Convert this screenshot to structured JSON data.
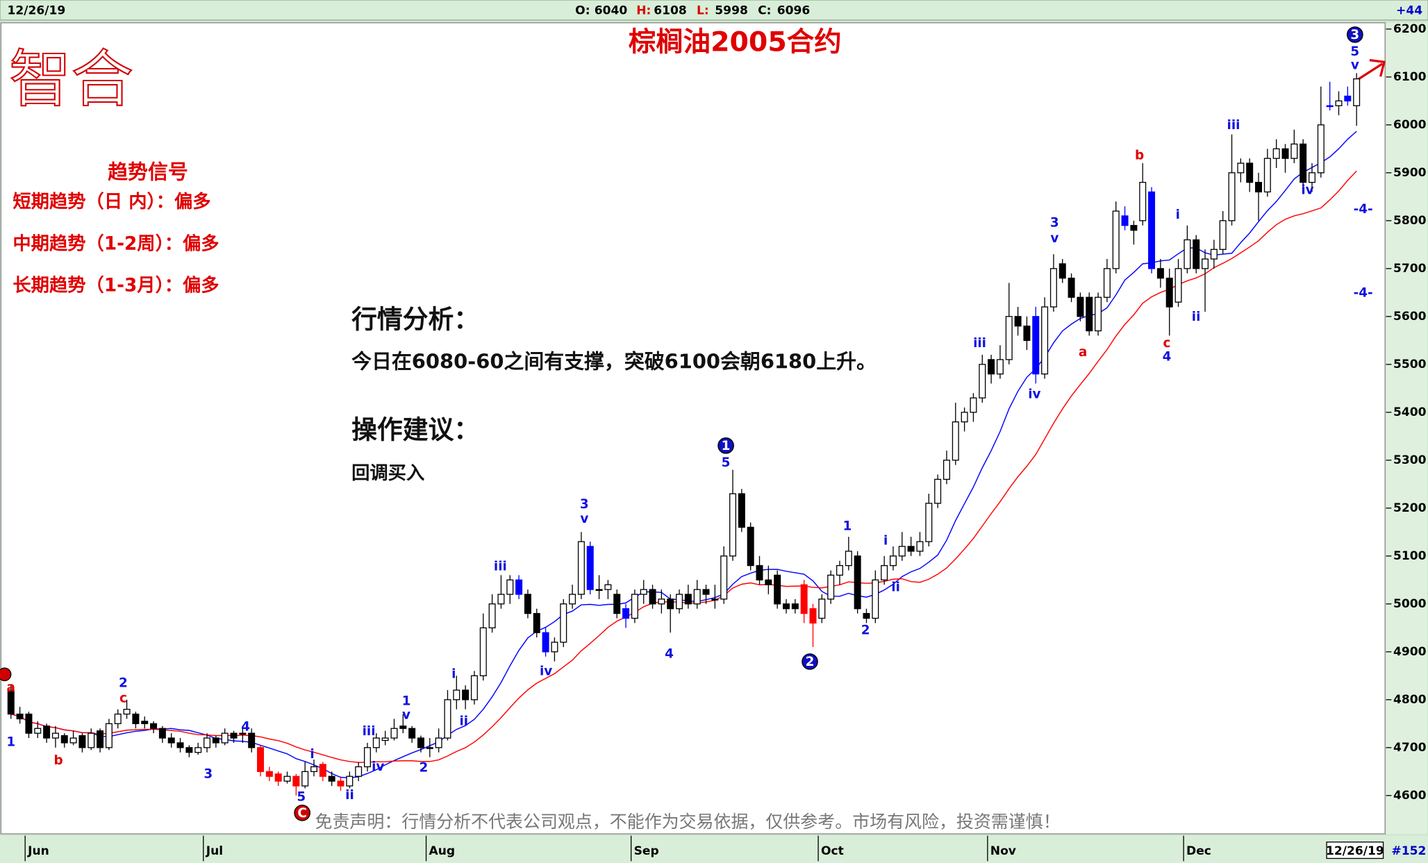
{
  "header": {
    "date": "12/26/19",
    "open_label": "O:",
    "open": 6040,
    "high_label": "H:",
    "high": 6108,
    "low_label": "L:",
    "low": 5998,
    "close_label": "C:",
    "close": 6096,
    "change": "+44"
  },
  "logo": "智合",
  "signals": {
    "title": "趋势信号",
    "lines": [
      "短期趋势（日 内）：偏多",
      "中期趋势（1-2周）：偏多",
      "长期趋势（1-3月）：偏多"
    ]
  },
  "analysis": {
    "heading": "行情分析：",
    "text": "今日在6080-60之间有支撑，突破6100会朝6180上升。",
    "advice_heading": "操作建议：",
    "advice": "回调买入"
  },
  "disclaimer": "免责声明：行情分析不代表公司观点，不能作为交易依据，仅供参考。市场有风险，投资需谨慎！",
  "footer": {
    "date": "12/26/19",
    "count": "#152"
  },
  "chart_data": {
    "type": "candlestick",
    "title": "棕榈油2005合约",
    "ylim": [
      4520,
      6215
    ],
    "yticks": [
      4600,
      4700,
      4800,
      4900,
      5000,
      5100,
      5200,
      5300,
      5400,
      5500,
      5600,
      5700,
      5800,
      5900,
      6000,
      6100,
      6200
    ],
    "up_color": "#ffffff",
    "down_color": "#000000",
    "red_color": "#ff0000",
    "blue_color": "#0000ff",
    "red_candles": [
      28,
      29,
      30,
      32,
      35,
      37,
      89,
      90
    ],
    "blue_candles": [
      57,
      60,
      65,
      69,
      115,
      125,
      128,
      148,
      150
    ],
    "moving_averages": [
      {
        "period": 10,
        "color": "#0000ff"
      },
      {
        "period": 20,
        "color": "#ff0000"
      }
    ],
    "categories": [
      null,
      null,
      "Jun",
      null,
      null,
      null,
      null,
      null,
      null,
      null,
      null,
      null,
      null,
      null,
      null,
      null,
      null,
      null,
      null,
      null,
      null,
      null,
      "Jul",
      null,
      null,
      null,
      null,
      null,
      null,
      null,
      null,
      null,
      null,
      null,
      null,
      null,
      null,
      null,
      null,
      null,
      null,
      null,
      null,
      null,
      null,
      null,
      null,
      "Aug",
      null,
      null,
      null,
      null,
      null,
      null,
      null,
      null,
      null,
      null,
      null,
      null,
      null,
      null,
      null,
      null,
      null,
      null,
      null,
      null,
      null,
      null,
      "Sep",
      null,
      null,
      null,
      null,
      null,
      null,
      null,
      null,
      null,
      null,
      null,
      null,
      null,
      null,
      null,
      null,
      null,
      null,
      null,
      null,
      "Oct",
      null,
      null,
      null,
      null,
      null,
      null,
      null,
      null,
      null,
      null,
      null,
      null,
      null,
      null,
      null,
      null,
      null,
      null,
      "Nov",
      null,
      null,
      null,
      null,
      null,
      null,
      null,
      null,
      null,
      null,
      null,
      null,
      null,
      null,
      null,
      null,
      null,
      null,
      null,
      null,
      null,
      "Dec",
      null,
      null,
      null,
      null,
      null,
      null,
      null,
      null,
      null,
      null,
      null,
      null,
      null,
      null,
      null,
      null,
      null,
      null,
      null
    ],
    "candles": [
      [
        4820,
        4830,
        4760,
        4770
      ],
      [
        4770,
        4785,
        4750,
        4760
      ],
      [
        4770,
        4775,
        4720,
        4730
      ],
      [
        4730,
        4755,
        4720,
        4740
      ],
      [
        4745,
        4750,
        4710,
        4720
      ],
      [
        4720,
        4745,
        4700,
        4730
      ],
      [
        4725,
        4730,
        4700,
        4710
      ],
      [
        4710,
        4735,
        4705,
        4720
      ],
      [
        4725,
        4730,
        4690,
        4700
      ],
      [
        4700,
        4740,
        4695,
        4730
      ],
      [
        4735,
        4740,
        4690,
        4700
      ],
      [
        4700,
        4760,
        4695,
        4750
      ],
      [
        4750,
        4780,
        4740,
        4770
      ],
      [
        4770,
        4800,
        4760,
        4780
      ],
      [
        4770,
        4775,
        4740,
        4750
      ],
      [
        4755,
        4765,
        4740,
        4750
      ],
      [
        4750,
        4755,
        4730,
        4740
      ],
      [
        4740,
        4745,
        4710,
        4720
      ],
      [
        4720,
        4730,
        4700,
        4710
      ],
      [
        4710,
        4720,
        4690,
        4700
      ],
      [
        4700,
        4705,
        4680,
        4690
      ],
      [
        4690,
        4710,
        4685,
        4700
      ],
      [
        4700,
        4730,
        4690,
        4720
      ],
      [
        4720,
        4725,
        4700,
        4710
      ],
      [
        4710,
        4740,
        4705,
        4730
      ],
      [
        4730,
        4735,
        4710,
        4720
      ],
      [
        4730,
        4745,
        4710,
        4730
      ],
      [
        4730,
        4740,
        4690,
        4700
      ],
      [
        4700,
        4705,
        4640,
        4650
      ],
      [
        4650,
        4660,
        4630,
        4640
      ],
      [
        4645,
        4650,
        4620,
        4630
      ],
      [
        4630,
        4650,
        4625,
        4640
      ],
      [
        4640,
        4645,
        4600,
        4620
      ],
      [
        4620,
        4670,
        4615,
        4650
      ],
      [
        4650,
        4675,
        4640,
        4660
      ],
      [
        4665,
        4670,
        4630,
        4640
      ],
      [
        4640,
        4650,
        4620,
        4630
      ],
      [
        4630,
        4640,
        4610,
        4620
      ],
      [
        4620,
        4650,
        4615,
        4640
      ],
      [
        4640,
        4670,
        4630,
        4660
      ],
      [
        4660,
        4710,
        4650,
        4700
      ],
      [
        4700,
        4730,
        4690,
        4720
      ],
      [
        4715,
        4735,
        4705,
        4720
      ],
      [
        4720,
        4760,
        4715,
        4740
      ],
      [
        4745,
        4770,
        4730,
        4740
      ],
      [
        4740,
        4745,
        4710,
        4720
      ],
      [
        4720,
        4725,
        4690,
        4700
      ],
      [
        4700,
        4720,
        4680,
        4700
      ],
      [
        4700,
        4740,
        4690,
        4720
      ],
      [
        4720,
        4820,
        4715,
        4800
      ],
      [
        4800,
        4850,
        4780,
        4820
      ],
      [
        4820,
        4830,
        4780,
        4800
      ],
      [
        4800,
        4860,
        4790,
        4850
      ],
      [
        4850,
        4980,
        4840,
        4950
      ],
      [
        4950,
        5020,
        4940,
        5000
      ],
      [
        5000,
        5060,
        4990,
        5020
      ],
      [
        5020,
        5060,
        5000,
        5050
      ],
      [
        5050,
        5060,
        5010,
        5020
      ],
      [
        5020,
        5030,
        4970,
        4980
      ],
      [
        4980,
        4990,
        4930,
        4940
      ],
      [
        4940,
        4950,
        4890,
        4900
      ],
      [
        4900,
        4930,
        4880,
        4920
      ],
      [
        4920,
        5010,
        4910,
        5000
      ],
      [
        5000,
        5040,
        4990,
        5020
      ],
      [
        5020,
        5150,
        5010,
        5130
      ],
      [
        5120,
        5130,
        5020,
        5030
      ],
      [
        5030,
        5060,
        5010,
        5030
      ],
      [
        5030,
        5050,
        5010,
        5040
      ],
      [
        5020,
        5030,
        4970,
        4980
      ],
      [
        4990,
        5000,
        4950,
        4970
      ],
      [
        4970,
        5030,
        4960,
        5020
      ],
      [
        5020,
        5050,
        5000,
        5030
      ],
      [
        5030,
        5040,
        4990,
        5000
      ],
      [
        5000,
        5030,
        4980,
        5010
      ],
      [
        5010,
        5020,
        4940,
        4990
      ],
      [
        4990,
        5030,
        4980,
        5020
      ],
      [
        5020,
        5040,
        4990,
        5000
      ],
      [
        5000,
        5050,
        4990,
        5030
      ],
      [
        5030,
        5040,
        5000,
        5020
      ],
      [
        5010,
        5040,
        4990,
        5010
      ],
      [
        5010,
        5120,
        5000,
        5100
      ],
      [
        5100,
        5280,
        5090,
        5230
      ],
      [
        5230,
        5240,
        5150,
        5160
      ],
      [
        5160,
        5170,
        5070,
        5080
      ],
      [
        5080,
        5100,
        5040,
        5050
      ],
      [
        5050,
        5080,
        5020,
        5040
      ],
      [
        5060,
        5070,
        4990,
        5000
      ],
      [
        5000,
        5010,
        4980,
        4990
      ],
      [
        5000,
        5010,
        4980,
        4990
      ],
      [
        5040,
        5050,
        4960,
        4980
      ],
      [
        4990,
        5000,
        4910,
        4960
      ],
      [
        4970,
        5020,
        4960,
        5010
      ],
      [
        5010,
        5070,
        5000,
        5060
      ],
      [
        5060,
        5090,
        5040,
        5080
      ],
      [
        5080,
        5140,
        5070,
        5110
      ],
      [
        5100,
        5110,
        4980,
        4990
      ],
      [
        4980,
        4990,
        4960,
        4970
      ],
      [
        4970,
        5070,
        4960,
        5050
      ],
      [
        5050,
        5100,
        5040,
        5080
      ],
      [
        5080,
        5120,
        5070,
        5100
      ],
      [
        5100,
        5150,
        5090,
        5120
      ],
      [
        5120,
        5140,
        5100,
        5110
      ],
      [
        5110,
        5150,
        5100,
        5130
      ],
      [
        5130,
        5230,
        5120,
        5210
      ],
      [
        5210,
        5270,
        5200,
        5260
      ],
      [
        5260,
        5320,
        5250,
        5300
      ],
      [
        5300,
        5420,
        5290,
        5380
      ],
      [
        5380,
        5410,
        5360,
        5400
      ],
      [
        5400,
        5440,
        5380,
        5430
      ],
      [
        5430,
        5520,
        5420,
        5500
      ],
      [
        5510,
        5520,
        5460,
        5480
      ],
      [
        5480,
        5540,
        5470,
        5510
      ],
      [
        5510,
        5670,
        5500,
        5600
      ],
      [
        5600,
        5620,
        5560,
        5580
      ],
      [
        5580,
        5600,
        5530,
        5550
      ],
      [
        5600,
        5620,
        5460,
        5480
      ],
      [
        5480,
        5640,
        5470,
        5620
      ],
      [
        5620,
        5730,
        5610,
        5700
      ],
      [
        5710,
        5720,
        5670,
        5680
      ],
      [
        5680,
        5690,
        5630,
        5640
      ],
      [
        5640,
        5650,
        5590,
        5600
      ],
      [
        5640,
        5650,
        5560,
        5570
      ],
      [
        5570,
        5650,
        5560,
        5640
      ],
      [
        5640,
        5720,
        5630,
        5700
      ],
      [
        5700,
        5840,
        5690,
        5820
      ],
      [
        5810,
        5830,
        5780,
        5790
      ],
      [
        5790,
        5800,
        5750,
        5780
      ],
      [
        5800,
        5920,
        5790,
        5880
      ],
      [
        5860,
        5870,
        5690,
        5700
      ],
      [
        5700,
        5720,
        5660,
        5680
      ],
      [
        5680,
        5700,
        5560,
        5620
      ],
      [
        5630,
        5720,
        5620,
        5700
      ],
      [
        5700,
        5790,
        5690,
        5760
      ],
      [
        5760,
        5770,
        5690,
        5700
      ],
      [
        5700,
        5740,
        5610,
        5720
      ],
      [
        5720,
        5760,
        5700,
        5740
      ],
      [
        5740,
        5820,
        5730,
        5800
      ],
      [
        5800,
        5980,
        5790,
        5900
      ],
      [
        5900,
        5930,
        5880,
        5920
      ],
      [
        5920,
        5930,
        5860,
        5880
      ],
      [
        5880,
        5900,
        5800,
        5860
      ],
      [
        5860,
        5950,
        5850,
        5930
      ],
      [
        5930,
        5970,
        5910,
        5950
      ],
      [
        5950,
        5960,
        5900,
        5930
      ],
      [
        5930,
        5990,
        5920,
        5960
      ],
      [
        5960,
        5970,
        5870,
        5880
      ],
      [
        5880,
        5920,
        5860,
        5900
      ],
      [
        5900,
        6080,
        5890,
        6000
      ],
      [
        6040,
        6090,
        6030,
        6040
      ],
      [
        6040,
        6070,
        6020,
        6050
      ],
      [
        6050,
        6080,
        6040,
        6060
      ],
      [
        6040,
        6108,
        5998,
        6096
      ]
    ],
    "wave_labels": [
      {
        "text": "a",
        "color": "#e00000"
      },
      {
        "text": "1",
        "color": "#1010e0"
      },
      {
        "text": "b",
        "color": "#e00000"
      },
      {
        "text": "2",
        "color": "#1010e0"
      },
      {
        "text": "c",
        "color": "#e00000"
      },
      {
        "text": "3",
        "color": "#1010e0"
      },
      {
        "text": "4",
        "color": "#1010e0"
      },
      {
        "text": "5",
        "color": "#1010e0"
      },
      {
        "text": "i",
        "color": "#1010e0"
      },
      {
        "text": "ii",
        "color": "#1010e0"
      },
      {
        "text": "iii",
        "color": "#1010e0"
      },
      {
        "text": "iv",
        "color": "#1010e0"
      },
      {
        "text": "1",
        "color": "#1010e0"
      },
      {
        "text": "v",
        "color": "#1010e0"
      },
      {
        "text": "2",
        "color": "#1010e0"
      },
      {
        "text": "i",
        "color": "#1010e0"
      },
      {
        "text": "ii",
        "color": "#1010e0"
      },
      {
        "text": "iii",
        "color": "#1010e0"
      },
      {
        "text": "iv",
        "color": "#1010e0"
      },
      {
        "text": "3",
        "color": "#1010e0"
      },
      {
        "text": "v",
        "color": "#1010e0"
      },
      {
        "text": "4",
        "color": "#1010e0"
      },
      {
        "text": "5",
        "color": "#1010e0"
      },
      {
        "text": "1",
        "color": "#1010e0"
      },
      {
        "text": "2",
        "color": "#1010e0"
      },
      {
        "text": "i",
        "color": "#1010e0"
      },
      {
        "text": "ii",
        "color": "#1010e0"
      },
      {
        "text": "iii",
        "color": "#1010e0"
      },
      {
        "text": "iv",
        "color": "#1010e0"
      },
      {
        "text": "3",
        "color": "#1010e0"
      },
      {
        "text": "v",
        "color": "#1010e0"
      },
      {
        "text": "a",
        "color": "#e00000"
      },
      {
        "text": "b",
        "color": "#e00000"
      },
      {
        "text": "i",
        "color": "#1010e0"
      },
      {
        "text": "c",
        "color": "#e00000"
      },
      {
        "text": "4",
        "color": "#1010e0"
      },
      {
        "text": "ii",
        "color": "#1010e0"
      },
      {
        "text": "iii",
        "color": "#1010e0"
      },
      {
        "text": "iv",
        "color": "#1010e0"
      },
      {
        "text": "5",
        "color": "#1010e0"
      },
      {
        "text": "v",
        "color": "#1010e0"
      },
      {
        "text": "-4-",
        "color": "#1010e0"
      },
      {
        "text": "-4-",
        "color": "#1010e0"
      }
    ],
    "circled_labels": [
      {
        "text": "1",
        "color": "#1010c0"
      },
      {
        "text": "2",
        "color": "#1010c0"
      },
      {
        "text": "3",
        "color": "#1010c0"
      },
      {
        "text": "C",
        "color": "#d00000"
      }
    ]
  }
}
